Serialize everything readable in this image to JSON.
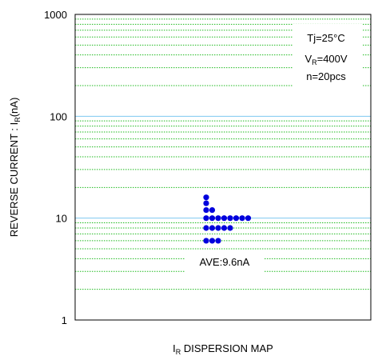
{
  "chart_data": {
    "type": "scatter",
    "title": "",
    "xlabel": "I_R DISPERSION MAP",
    "xlabel_main": "I",
    "xlabel_sub": "R",
    "xlabel_rest": " DISPERSION MAP",
    "ylabel": "REVERSE CURRENT : I_R(nA)",
    "ylabel_main": "REVERSE CURRENT : I",
    "ylabel_sub": "R",
    "ylabel_rest": "(nA)",
    "y_scale": "log",
    "ylim": [
      1,
      1000
    ],
    "y_ticks": [
      "1",
      "10",
      "100",
      "1000"
    ],
    "grid": true,
    "grid_color": "#22bb22",
    "major_grid_color": "#7ec8f0",
    "point_color": "#0000dd",
    "conditions": {
      "tj": "Tj=25°C",
      "vr_main": "V",
      "vr_sub": "R",
      "vr_rest": "=400V",
      "n": "n=20pcs"
    },
    "annotation": "AVE:9.6nA",
    "points": [
      {
        "column": 1,
        "y": 16
      },
      {
        "column": 1,
        "y": 14
      },
      {
        "column": 1,
        "y": 12
      },
      {
        "column": 2,
        "y": 12
      },
      {
        "column": 1,
        "y": 10
      },
      {
        "column": 2,
        "y": 10
      },
      {
        "column": 3,
        "y": 10
      },
      {
        "column": 4,
        "y": 10
      },
      {
        "column": 5,
        "y": 10
      },
      {
        "column": 6,
        "y": 10
      },
      {
        "column": 7,
        "y": 10
      },
      {
        "column": 8,
        "y": 10
      },
      {
        "column": 1,
        "y": 8
      },
      {
        "column": 2,
        "y": 8
      },
      {
        "column": 3,
        "y": 8
      },
      {
        "column": 4,
        "y": 8
      },
      {
        "column": 5,
        "y": 8
      },
      {
        "column": 1,
        "y": 6
      },
      {
        "column": 2,
        "y": 6
      },
      {
        "column": 3,
        "y": 6
      }
    ]
  }
}
